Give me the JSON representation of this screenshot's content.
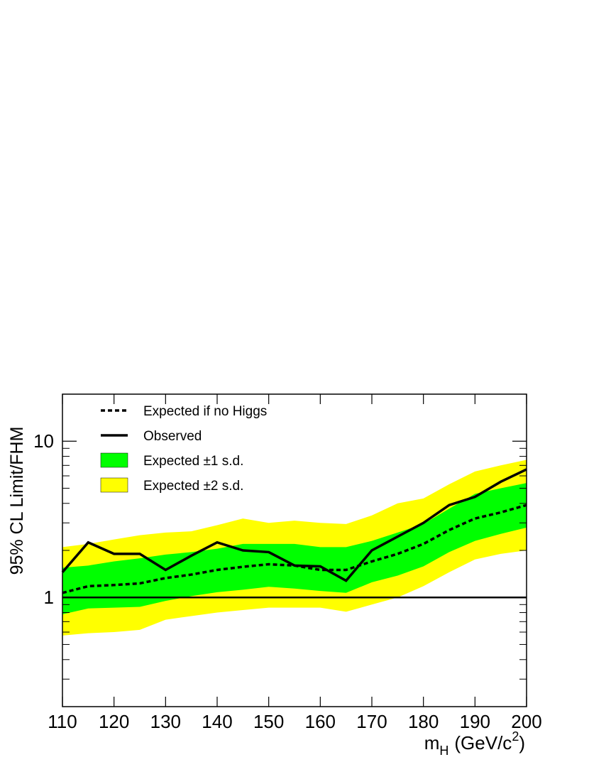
{
  "chart_data": {
    "type": "line",
    "y_label": "95% CL Limit/FHM",
    "x_label_parts": [
      "m",
      "H",
      "(GeV/c",
      "2",
      ")"
    ],
    "x": [
      110,
      115,
      120,
      125,
      130,
      135,
      140,
      145,
      150,
      155,
      160,
      165,
      170,
      175,
      180,
      185,
      190,
      195,
      200
    ],
    "series": [
      {
        "name": "Expected if no Higgs",
        "color": "#000000",
        "dashed": true,
        "values": [
          1.07,
          1.18,
          1.2,
          1.23,
          1.33,
          1.4,
          1.5,
          1.57,
          1.63,
          1.6,
          1.5,
          1.5,
          1.7,
          1.9,
          2.2,
          2.7,
          3.2,
          3.5,
          3.9
        ]
      },
      {
        "name": "Observed",
        "color": "#000000",
        "dashed": false,
        "values": [
          1.45,
          2.25,
          1.9,
          1.9,
          1.5,
          1.85,
          2.25,
          2.0,
          1.95,
          1.6,
          1.58,
          1.28,
          2.0,
          2.45,
          3.0,
          3.9,
          4.4,
          5.5,
          6.6
        ]
      }
    ],
    "bands": [
      {
        "name": "Expected ±1 s.d.",
        "color": "#00ff00",
        "low": [
          0.78,
          0.85,
          0.86,
          0.87,
          0.95,
          1.02,
          1.08,
          1.12,
          1.17,
          1.14,
          1.1,
          1.07,
          1.25,
          1.38,
          1.58,
          1.95,
          2.3,
          2.55,
          2.8
        ],
        "high": [
          1.55,
          1.6,
          1.7,
          1.78,
          1.88,
          1.95,
          2.05,
          2.2,
          2.2,
          2.2,
          2.1,
          2.1,
          2.3,
          2.6,
          2.95,
          3.7,
          4.6,
          5.0,
          5.4
        ]
      },
      {
        "name": "Expected ±2 s.d.",
        "color": "#ffff00",
        "low": [
          0.57,
          0.59,
          0.6,
          0.62,
          0.72,
          0.76,
          0.8,
          0.83,
          0.86,
          0.86,
          0.86,
          0.81,
          0.9,
          1.0,
          1.18,
          1.45,
          1.75,
          1.9,
          2.0
        ],
        "high": [
          2.1,
          2.2,
          2.35,
          2.5,
          2.6,
          2.65,
          2.9,
          3.2,
          3.0,
          3.1,
          3.0,
          2.95,
          3.35,
          4.0,
          4.3,
          5.3,
          6.4,
          7.0,
          7.6
        ]
      }
    ],
    "reference_line": 1,
    "xlim": [
      110,
      200
    ],
    "xticks": [
      110,
      120,
      130,
      140,
      150,
      160,
      170,
      180,
      190,
      200
    ],
    "ylim": [
      0.2,
      20
    ],
    "yticks": [
      1,
      10
    ],
    "log_y": true,
    "yminorticks": [
      0.2,
      0.3,
      0.4,
      0.5,
      0.6,
      0.7,
      0.8,
      0.9,
      2,
      3,
      4,
      5,
      6,
      7,
      8,
      9,
      20
    ]
  }
}
